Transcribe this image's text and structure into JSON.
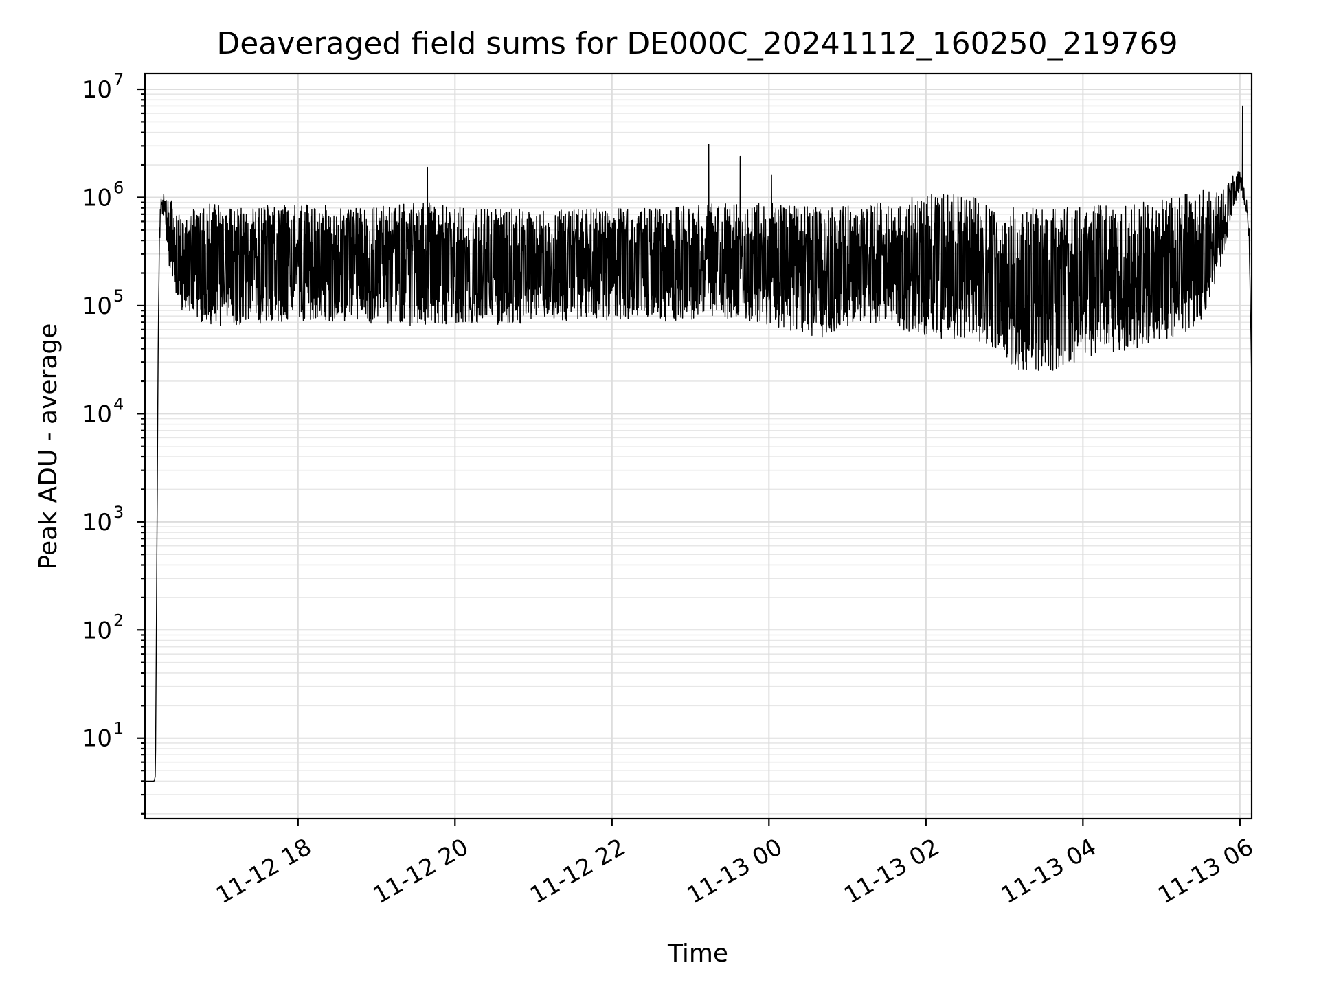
{
  "chart_data": {
    "type": "line",
    "title": "Deaveraged field sums for DE000C_20241112_160250_219769",
    "xlabel": "Time",
    "ylabel": "Peak ADU - average",
    "yscale": "log",
    "ylim": [
      1.8,
      14000000
    ],
    "xlim": [
      "2024-11-12 16:03",
      "2024-11-13 06:09"
    ],
    "x_ticks": [
      {
        "value": "2024-11-12 18:00",
        "label": "11-12 18"
      },
      {
        "value": "2024-11-12 20:00",
        "label": "11-12 20"
      },
      {
        "value": "2024-11-12 22:00",
        "label": "11-12 22"
      },
      {
        "value": "2024-11-13 00:00",
        "label": "11-13 00"
      },
      {
        "value": "2024-11-13 02:00",
        "label": "11-13 02"
      },
      {
        "value": "2024-11-13 04:00",
        "label": "11-13 04"
      },
      {
        "value": "2024-11-13 06:00",
        "label": "11-13 06"
      }
    ],
    "y_ticks": [
      {
        "value": 10,
        "base": "10",
        "exp": "1"
      },
      {
        "value": 100,
        "base": "10",
        "exp": "2"
      },
      {
        "value": 1000,
        "base": "10",
        "exp": "3"
      },
      {
        "value": 10000,
        "base": "10",
        "exp": "4"
      },
      {
        "value": 100000,
        "base": "10",
        "exp": "5"
      },
      {
        "value": 1000000,
        "base": "10",
        "exp": "6"
      },
      {
        "value": 10000000,
        "base": "10",
        "exp": "7"
      }
    ],
    "grid": "on (major and minor)",
    "line_color": "#000000",
    "series": [
      {
        "x": [
          "2024-11-12 16:03",
          "2024-11-12 16:10",
          "2024-11-12 16:11",
          "2024-11-12 16:12",
          "2024-11-12 16:13",
          "2024-11-12 16:14",
          "2024-11-12 16:15",
          "2024-11-12 16:18",
          "2024-11-12 16:22",
          "2024-11-12 16:28",
          "2024-11-12 16:35",
          "2024-11-12 16:42",
          "2024-11-12 16:50",
          "2024-11-12 17:10",
          "2024-11-12 17:40",
          "2024-11-12 18:10",
          "2024-11-12 18:40",
          "2024-11-12 19:10",
          "2024-11-12 19:40",
          "2024-11-12 20:10",
          "2024-11-12 20:40",
          "2024-11-12 21:10",
          "2024-11-12 21:40",
          "2024-11-12 22:10",
          "2024-11-12 22:40",
          "2024-11-12 23:10",
          "2024-11-12 23:40",
          "2024-11-13 00:10",
          "2024-11-13 00:40",
          "2024-11-13 01:10",
          "2024-11-13 01:40",
          "2024-11-13 02:10",
          "2024-11-13 02:40",
          "2024-11-13 03:10",
          "2024-11-13 03:40",
          "2024-11-13 04:10",
          "2024-11-13 04:40",
          "2024-11-13 05:10",
          "2024-11-13 05:30",
          "2024-11-13 05:45",
          "2024-11-13 05:55",
          "2024-11-13 06:00",
          "2024-11-13 06:03",
          "2024-11-13 06:05",
          "2024-11-13 06:07",
          "2024-11-13 06:09"
        ],
        "hi": [
          4,
          4,
          4.5,
          300,
          30000,
          500000,
          1000000,
          1100000,
          1000000,
          700000,
          800000,
          800000,
          900000,
          800000,
          850000,
          900000,
          800000,
          850000,
          900000,
          800000,
          800000,
          750000,
          800000,
          800000,
          800000,
          900000,
          900000,
          900000,
          800000,
          850000,
          1000000,
          1100000,
          1000000,
          800000,
          800000,
          850000,
          900000,
          1000000,
          1200000,
          1100000,
          1600000,
          1800000,
          1300000,
          1000000,
          600000,
          20000
        ],
        "lo": [
          4,
          4,
          4.5,
          300,
          30000,
          300000,
          700000,
          600000,
          200000,
          100000,
          80000,
          70000,
          65000,
          65000,
          70000,
          70000,
          70000,
          65000,
          65000,
          70000,
          65000,
          75000,
          70000,
          75000,
          70000,
          75000,
          75000,
          60000,
          50000,
          70000,
          60000,
          50000,
          45000,
          25000,
          25000,
          35000,
          40000,
          50000,
          70000,
          200000,
          800000,
          1200000,
          900000,
          700000,
          400000,
          20000
        ],
        "spikes": [
          {
            "x": "2024-11-12 19:39",
            "y": 1900000
          },
          {
            "x": "2024-11-12 23:14",
            "y": 3100000
          },
          {
            "x": "2024-11-12 23:38",
            "y": 2400000
          },
          {
            "x": "2024-11-13 00:02",
            "y": 1600000
          },
          {
            "x": "2024-11-13 06:02",
            "y": 7000000
          }
        ]
      }
    ]
  }
}
